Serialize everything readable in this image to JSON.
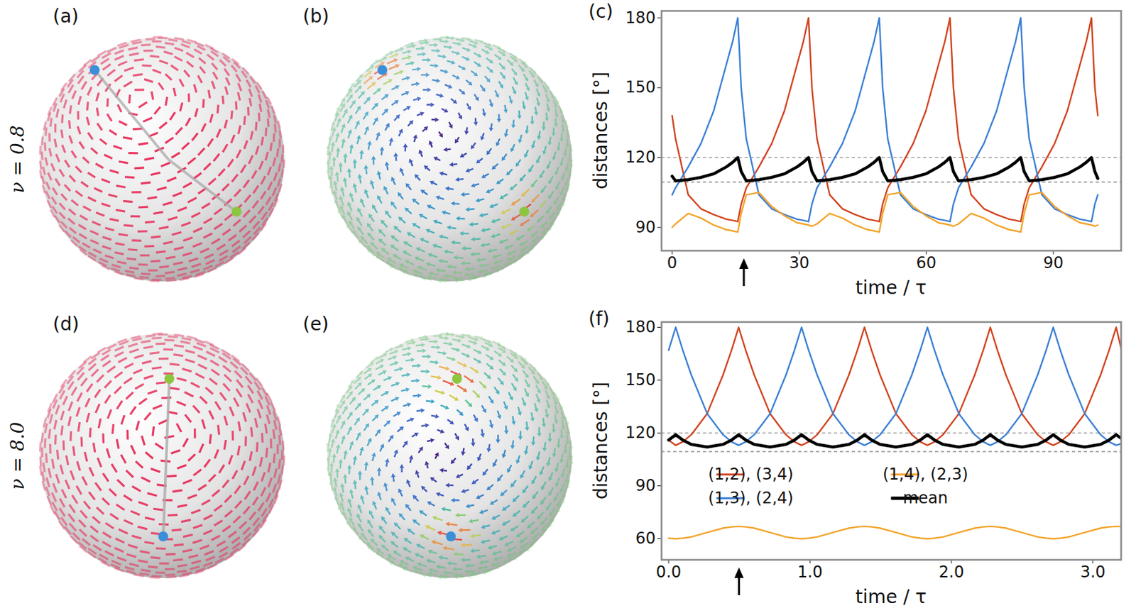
{
  "row_labels": [
    "ν = 0.8",
    "ν = 8.0"
  ],
  "sphere_panels": [
    [
      "(a)",
      "(b)"
    ],
    [
      "(d)",
      "(e)"
    ]
  ],
  "chart_data": [
    {
      "panel": "(c)",
      "type": "line",
      "xlabel": "time / τ",
      "ylabel": "distances [°]",
      "xlim": [
        -2.5,
        106
      ],
      "xticks": [
        0,
        30,
        60,
        90
      ],
      "ylim": [
        80,
        183
      ],
      "yticks": [
        90,
        120,
        150,
        180
      ],
      "hlines": [
        109.47,
        120
      ],
      "arrow_x": 17,
      "x": [
        0,
        0.8,
        3.8,
        6.8,
        9.8,
        12.8,
        14.3,
        15.5,
        16.3,
        17.5,
        20.5,
        23.5,
        26.5,
        29.5,
        31.0,
        32.2,
        33.0,
        34.2,
        37.2,
        40.2,
        43.2,
        46.2,
        47.7,
        48.9,
        49.7,
        50.9,
        53.9,
        56.9,
        59.9,
        62.9,
        64.4,
        65.6,
        66.4,
        67.6,
        70.6,
        73.6,
        76.6,
        79.6,
        81.1,
        82.3,
        83.1,
        84.3,
        87.3,
        90.3,
        93.3,
        96.3,
        97.8,
        99.0,
        99.8,
        100.5
      ],
      "series": [
        {
          "color": "#d1431f",
          "line_style": "solid",
          "values": [
            138,
            128,
            104,
            98,
            95.5,
            93.5,
            93,
            92.5,
            100,
            107,
            116,
            126,
            140,
            160,
            170,
            180,
            150,
            128,
            104,
            98,
            95.5,
            93.5,
            93,
            92.5,
            100,
            107,
            116,
            126,
            140,
            160,
            170,
            180,
            150,
            128,
            104,
            98,
            95.5,
            93.5,
            93,
            92.5,
            100,
            107,
            116,
            126,
            140,
            160,
            170,
            180,
            150,
            138
          ]
        },
        {
          "color": "#3b7fd4",
          "line_style": "solid",
          "values": [
            104,
            107,
            116,
            126,
            140,
            160,
            170,
            180,
            150,
            128,
            104,
            98,
            95.5,
            93.5,
            93,
            92.5,
            100,
            107,
            116,
            126,
            140,
            160,
            170,
            180,
            150,
            128,
            104,
            98,
            95.5,
            93.5,
            93,
            92.5,
            100,
            107,
            116,
            126,
            140,
            160,
            170,
            180,
            150,
            128,
            104,
            98,
            95.5,
            93.5,
            93,
            92.5,
            100,
            104
          ]
        },
        {
          "color": "#f2a42a",
          "line_style": "solid",
          "values": [
            90,
            91.5,
            96,
            94,
            91,
            89,
            88.5,
            88,
            96,
            104,
            105,
            99,
            95,
            92,
            91.5,
            91,
            90.5,
            91.5,
            96,
            94,
            91,
            89,
            88.5,
            88,
            96,
            104,
            105,
            99,
            95,
            92,
            91.5,
            91,
            90.5,
            91.5,
            96,
            94,
            91,
            89,
            88.5,
            88,
            96,
            104,
            105,
            99,
            95,
            92,
            91.5,
            91,
            90.5,
            91
          ]
        },
        {
          "color": "#000000",
          "line_style": "thick",
          "values": [
            112,
            110,
            110.5,
            111.5,
            113,
            116,
            118,
            120,
            114,
            110,
            110.5,
            111.5,
            113,
            116,
            118,
            120,
            114,
            110,
            110.5,
            111.5,
            113,
            116,
            118,
            120,
            114,
            110,
            110.5,
            111.5,
            113,
            116,
            118,
            120,
            114,
            110,
            110.5,
            111.5,
            113,
            116,
            118,
            120,
            114,
            110,
            110.5,
            111.5,
            113,
            116,
            118,
            120,
            114,
            111
          ]
        }
      ]
    },
    {
      "panel": "(f)",
      "type": "line",
      "xlabel": "time / τ",
      "ylabel": "distances [°]",
      "xlim": [
        -0.05,
        3.2
      ],
      "xticks": [
        0,
        1,
        2,
        3
      ],
      "ylim": [
        48,
        183
      ],
      "yticks": [
        60,
        90,
        120,
        150,
        180
      ],
      "hlines": [
        109.47,
        120
      ],
      "arrow_x": 0.5,
      "legend": "center",
      "x": [
        0,
        0.05,
        0.1,
        0.16,
        0.2725,
        0.385,
        0.445,
        0.495,
        0.545,
        0.605,
        0.7175,
        0.83,
        0.89,
        0.94,
        0.99,
        1.05,
        1.1625,
        1.275,
        1.335,
        1.385,
        1.435,
        1.495,
        1.6075,
        1.72,
        1.78,
        1.83,
        1.88,
        1.94,
        2.0525,
        2.165,
        2.225,
        2.275,
        2.325,
        2.385,
        2.4975,
        2.61,
        2.67,
        2.72,
        2.77,
        2.83,
        2.9425,
        3.055,
        3.115,
        3.165,
        3.2
      ],
      "series": [
        {
          "name": "(1,2), (3,4)",
          "color": "#d1431f",
          "line_style": "solid",
          "values": [
            116,
            113,
            115,
            119,
            131,
            153,
            167,
            180,
            167,
            153,
            131,
            119,
            115,
            113,
            115,
            119,
            131,
            153,
            167,
            180,
            167,
            153,
            131,
            119,
            115,
            113,
            115,
            119,
            131,
            153,
            167,
            180,
            167,
            153,
            131,
            119,
            115,
            113,
            115,
            119,
            131,
            153,
            167,
            180,
            168
          ]
        },
        {
          "name": "(1,3), (2,4)",
          "color": "#3b7fd4",
          "line_style": "solid",
          "values": [
            167,
            180,
            167,
            153,
            131,
            119,
            115,
            113,
            115,
            119,
            131,
            153,
            167,
            180,
            167,
            153,
            131,
            119,
            115,
            113,
            115,
            119,
            131,
            153,
            167,
            180,
            167,
            153,
            131,
            119,
            115,
            113,
            115,
            119,
            131,
            153,
            167,
            180,
            167,
            153,
            131,
            119,
            115,
            113,
            114
          ]
        },
        {
          "name": "(1,4), (2,3)",
          "color": "#f2a42a",
          "line_style": "solid",
          "values": [
            60.3,
            60,
            60.3,
            61,
            63.5,
            66,
            66.7,
            67,
            66.7,
            66,
            63.5,
            61,
            60.3,
            60,
            60.3,
            61,
            63.5,
            66,
            66.7,
            67,
            66.7,
            66,
            63.5,
            61,
            60.3,
            60,
            60.3,
            61,
            63.5,
            66,
            66.7,
            67,
            66.7,
            66,
            63.5,
            61,
            60.3,
            60,
            60.3,
            61,
            63.5,
            66,
            66.7,
            67,
            66.9
          ]
        },
        {
          "name": "mean",
          "color": "#000000",
          "line_style": "thick",
          "values": [
            116,
            119,
            116,
            113.5,
            112,
            113.5,
            116,
            119,
            116,
            113.5,
            112,
            113.5,
            116,
            119,
            116,
            113.5,
            112,
            113.5,
            116,
            119,
            116,
            113.5,
            112,
            113.5,
            116,
            119,
            116,
            113.5,
            112,
            113.5,
            116,
            119,
            116,
            113.5,
            112,
            113.5,
            116,
            119,
            116,
            113.5,
            112,
            113.5,
            116,
            119,
            117
          ]
        }
      ]
    }
  ]
}
